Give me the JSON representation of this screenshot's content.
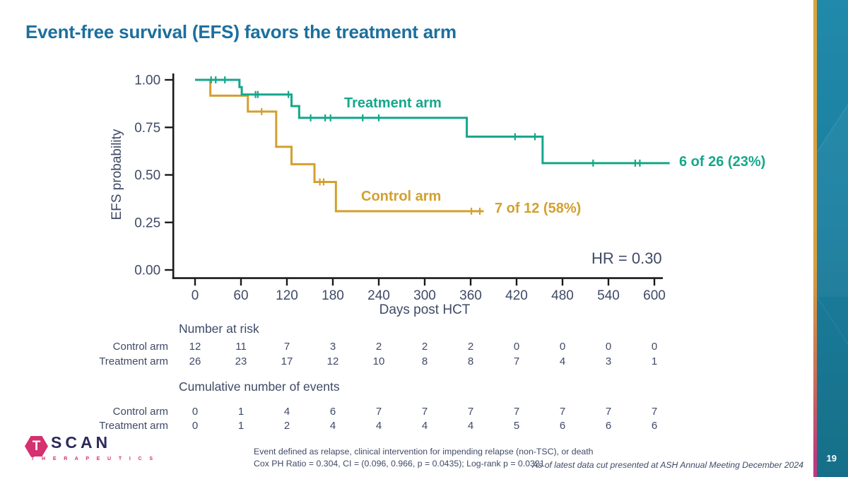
{
  "title": "Event-free survival (EFS) favors the treatment arm",
  "page_number": "19",
  "colors": {
    "title": "#1c6f9e",
    "text": "#3f4a66",
    "axis": "#1a1a1a",
    "treatment": "#15a78b",
    "control": "#d3a02f",
    "band_teal": "#1b80a1",
    "stripe_gold": "#d9a53c",
    "stripe_pink": "#bd3b7e",
    "logo_pink": "#d5306f",
    "logo_navy": "#2d2a5e"
  },
  "chart_data": {
    "type": "line",
    "subtype": "kaplan-meier-step",
    "xlabel": "Days post HCT",
    "ylabel": "EFS probability",
    "xlim": [
      0,
      648
    ],
    "ylim": [
      0,
      1
    ],
    "x_ticks": [
      0,
      60,
      120,
      180,
      240,
      300,
      360,
      420,
      480,
      540,
      600
    ],
    "y_ticks": [
      {
        "v": 1.0,
        "label": "1.00"
      },
      {
        "v": 0.75,
        "label": "0.75"
      },
      {
        "v": 0.5,
        "label": "0.50"
      },
      {
        "v": 0.25,
        "label": "0.25"
      },
      {
        "v": 0.0,
        "label": "0.00"
      }
    ],
    "series": [
      {
        "name": "Control arm",
        "color_key": "control",
        "n": 12,
        "start": 1.0,
        "steps": [
          [
            20,
            0.917
          ],
          [
            69,
            0.833
          ],
          [
            106,
            0.648
          ],
          [
            126,
            0.556
          ],
          [
            156,
            0.463
          ],
          [
            184,
            0.309
          ]
        ],
        "end_day": 377,
        "censors": [
          [
            87,
            0.833
          ],
          [
            163,
            0.463
          ],
          [
            168,
            0.463
          ],
          [
            361,
            0.309
          ],
          [
            372,
            0.309
          ]
        ]
      },
      {
        "name": "Treatment arm",
        "color_key": "treatment",
        "n": 26,
        "start": 1.0,
        "steps": [
          [
            58,
            0.962
          ],
          [
            61,
            0.923
          ],
          [
            126,
            0.862
          ],
          [
            136,
            0.8
          ],
          [
            355,
            0.701
          ],
          [
            454,
            0.562
          ]
        ],
        "end_day": 620,
        "censors": [
          [
            21,
            1.0
          ],
          [
            27,
            1.0
          ],
          [
            39,
            1.0
          ],
          [
            79,
            0.923
          ],
          [
            82,
            0.923
          ],
          [
            122,
            0.923
          ],
          [
            151,
            0.8
          ],
          [
            170,
            0.8
          ],
          [
            177,
            0.8
          ],
          [
            219,
            0.8
          ],
          [
            240,
            0.8
          ],
          [
            418,
            0.701
          ],
          [
            444,
            0.701
          ],
          [
            520,
            0.562
          ],
          [
            575,
            0.562
          ],
          [
            581,
            0.562
          ]
        ]
      }
    ]
  },
  "annotations": {
    "treatment_label": "Treatment arm",
    "control_label": "Control arm",
    "treatment_endpoint": "6 of 26 (23%)",
    "control_endpoint": "7 of 12 (58%)",
    "hazard_ratio": "HR = 0.30"
  },
  "risk_table": {
    "heading": "Number at risk",
    "rows": [
      {
        "label": "Control arm",
        "values": [
          12,
          11,
          7,
          3,
          2,
          2,
          2,
          0,
          0,
          0,
          0
        ]
      },
      {
        "label": "Treatment arm",
        "values": [
          26,
          23,
          17,
          12,
          10,
          8,
          8,
          7,
          4,
          3,
          1
        ]
      }
    ]
  },
  "events_table": {
    "heading": "Cumulative number of events",
    "rows": [
      {
        "label": "Control arm",
        "values": [
          0,
          1,
          4,
          6,
          7,
          7,
          7,
          7,
          7,
          7,
          7
        ]
      },
      {
        "label": "Treatment arm",
        "values": [
          0,
          1,
          2,
          4,
          4,
          4,
          4,
          5,
          6,
          6,
          6
        ]
      }
    ]
  },
  "footnotes": {
    "line1": "Event defined as relapse, clinical intervention for impending relapse (non-TSC), or death",
    "line2": "Cox PH Ratio = 0.304, CI = (0.096, 0.966, p = 0.0435); Log-rank p = 0.0321"
  },
  "source_note": "As of latest data cut presented at ASH Annual Meeting December 2024",
  "logo": {
    "t": "T",
    "name": "SCAN",
    "subtitle": "T H E R A P E U T I C S"
  }
}
